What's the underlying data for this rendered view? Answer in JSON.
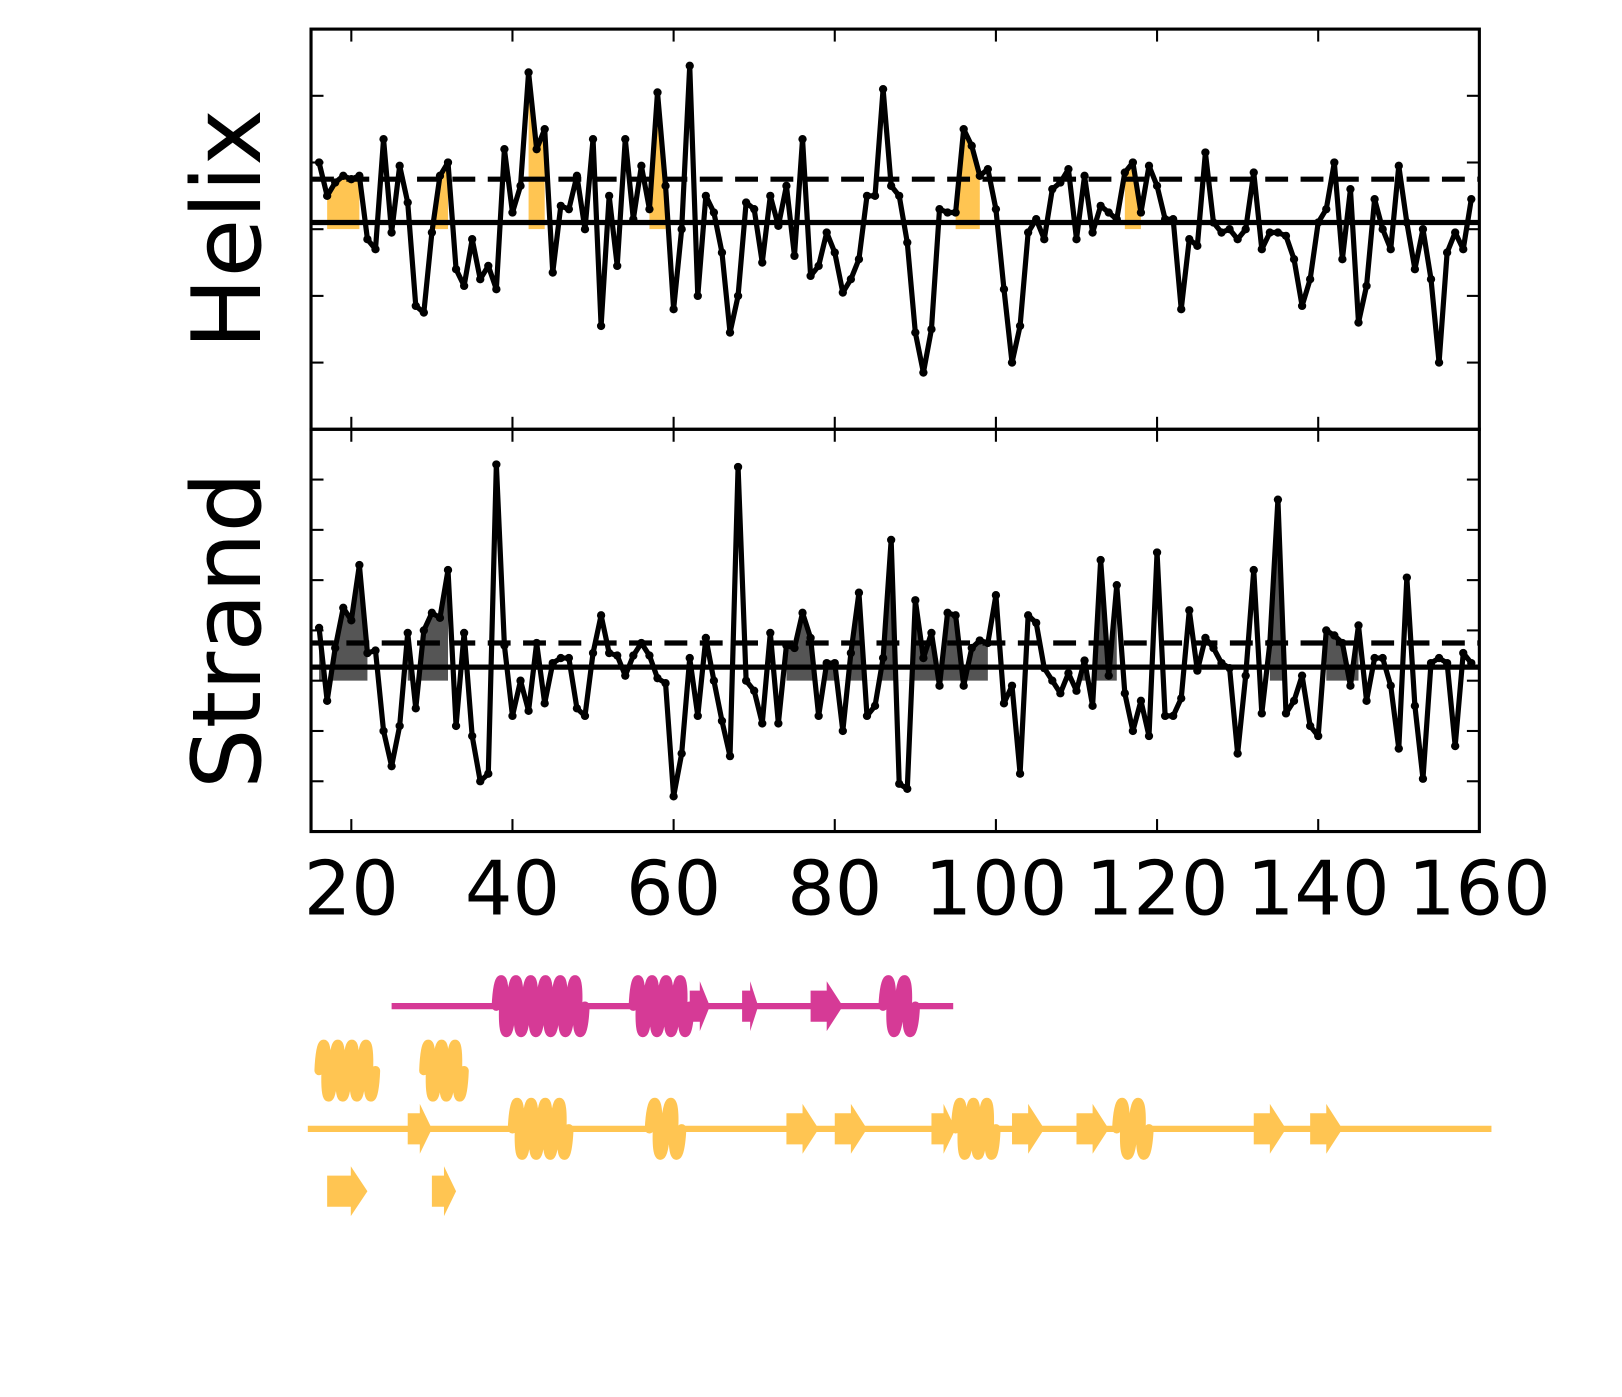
{
  "chart_data": [
    {
      "type": "line",
      "ylabel": "Helix",
      "x": [
        16,
        17,
        18,
        19,
        20,
        21,
        22,
        23,
        24,
        25,
        26,
        27,
        28,
        29,
        30,
        31,
        32,
        33,
        34,
        35,
        36,
        37,
        38,
        39,
        40,
        41,
        42,
        43,
        44,
        45,
        46,
        47,
        48,
        49,
        50,
        51,
        52,
        53,
        54,
        55,
        56,
        57,
        58,
        59,
        60,
        61,
        62,
        63,
        64,
        65,
        66,
        67,
        68,
        69,
        70,
        71,
        72,
        73,
        74,
        75,
        76,
        77,
        78,
        79,
        80,
        81,
        82,
        83,
        84,
        85,
        86,
        87,
        88,
        89,
        90,
        91,
        92,
        93,
        94,
        95,
        96,
        97,
        98,
        99,
        100,
        101,
        102,
        103,
        104,
        105,
        106,
        107,
        108,
        109,
        110,
        111,
        112,
        113,
        114,
        115,
        116,
        117,
        118,
        119,
        120,
        121,
        122,
        123,
        124,
        125,
        126,
        127,
        128,
        129,
        130,
        131,
        132,
        133,
        134,
        135,
        136,
        137,
        138,
        139,
        140,
        141,
        142,
        143,
        144,
        145,
        146,
        147,
        148,
        149,
        150,
        151,
        152,
        153,
        154,
        155,
        156,
        157,
        158,
        159
      ],
      "series": [
        {
          "color": "#000000",
          "values": [
            1.0,
            0.5,
            0.7,
            0.8,
            0.75,
            0.8,
            -0.15,
            -0.3,
            1.35,
            -0.05,
            0.95,
            0.4,
            -1.15,
            -1.25,
            -0.05,
            0.8,
            1.0,
            -0.6,
            -0.85,
            -0.15,
            -0.75,
            -0.55,
            -0.9,
            1.2,
            0.25,
            0.65,
            2.35,
            1.2,
            1.5,
            -0.65,
            0.35,
            0.3,
            0.8,
            0,
            1.35,
            -1.45,
            0.5,
            -0.55,
            1.35,
            0.15,
            0.95,
            0.3,
            2.05,
            0.65,
            -1.2,
            0,
            2.45,
            -1.0,
            0.5,
            0.25,
            -0.35,
            -1.55,
            -1.0,
            0.4,
            0.3,
            -0.5,
            0.5,
            0.05,
            0.65,
            -0.4,
            1.35,
            -0.7,
            -0.55,
            -0.05,
            -0.35,
            -0.95,
            -0.75,
            -0.45,
            0.5,
            0.5,
            2.1,
            0.65,
            0.5,
            -0.2,
            -1.55,
            -2.15,
            -1.5,
            0.3,
            0.25,
            0.25,
            1.5,
            1.25,
            0.8,
            0.9,
            0.3,
            -0.9,
            -2.0,
            -1.45,
            -0.05,
            0.15,
            -0.15,
            0.6,
            0.7,
            0.9,
            -0.15,
            0.8,
            -0.05,
            0.35,
            0.25,
            0.15,
            0.85,
            1.0,
            0.25,
            0.95,
            0.65,
            0.15,
            0.15,
            -1.2,
            -0.15,
            -0.25,
            1.15,
            0.1,
            -0.05,
            0,
            -0.15,
            0,
            0.85,
            -0.3,
            -0.05,
            -0.05,
            -0.1,
            -0.45,
            -1.15,
            -0.75,
            0.1,
            0.3,
            1.0,
            -0.45,
            0.6,
            -1.4,
            -0.85,
            0.45,
            0,
            -0.3,
            0.95,
            0.1,
            -0.6,
            0,
            -0.75,
            -2.0,
            -0.35,
            -0.05,
            -0.3,
            0.45
          ]
        }
      ],
      "xlim": [
        15,
        160
      ],
      "xticks": [
        20,
        40,
        60,
        80,
        100,
        120,
        140,
        160
      ],
      "ylim": [
        -3,
        3
      ],
      "yticks": [
        -2,
        -1,
        0,
        1,
        2
      ],
      "thresholds": [
        {
          "value": 0.1,
          "style": "solid"
        },
        {
          "value": 0.75,
          "style": "dashed"
        }
      ],
      "fill_color": "#ffc552",
      "fill_regions": [
        [
          17,
          21
        ],
        [
          30,
          32
        ],
        [
          42,
          44
        ],
        [
          57,
          59
        ],
        [
          95,
          98
        ],
        [
          116,
          118
        ]
      ]
    },
    {
      "type": "line",
      "ylabel": "Strand",
      "x": [
        16,
        17,
        18,
        19,
        20,
        21,
        22,
        23,
        24,
        25,
        26,
        27,
        28,
        29,
        30,
        31,
        32,
        33,
        34,
        35,
        36,
        37,
        38,
        39,
        40,
        41,
        42,
        43,
        44,
        45,
        46,
        47,
        48,
        49,
        50,
        51,
        52,
        53,
        54,
        55,
        56,
        57,
        58,
        59,
        60,
        61,
        62,
        63,
        64,
        65,
        66,
        67,
        68,
        69,
        70,
        71,
        72,
        73,
        74,
        75,
        76,
        77,
        78,
        79,
        80,
        81,
        82,
        83,
        84,
        85,
        86,
        87,
        88,
        89,
        90,
        91,
        92,
        93,
        94,
        95,
        96,
        97,
        98,
        99,
        100,
        101,
        102,
        103,
        104,
        105,
        106,
        107,
        108,
        109,
        110,
        111,
        112,
        113,
        114,
        115,
        116,
        117,
        118,
        119,
        120,
        121,
        122,
        123,
        124,
        125,
        126,
        127,
        128,
        129,
        130,
        131,
        132,
        133,
        134,
        135,
        136,
        137,
        138,
        139,
        140,
        141,
        142,
        143,
        144,
        145,
        146,
        147,
        148,
        149,
        150,
        151,
        152,
        153,
        154,
        155,
        156,
        157,
        158,
        159
      ],
      "series": [
        {
          "color": "#000000",
          "values": [
            1.05,
            -0.4,
            0.65,
            1.45,
            1.2,
            2.3,
            0.55,
            0.6,
            -1.0,
            -1.7,
            -0.9,
            0.95,
            -0.55,
            1.0,
            1.35,
            1.25,
            2.2,
            -0.9,
            0.95,
            -1.1,
            -2.0,
            -1.85,
            4.3,
            0.7,
            -0.7,
            0,
            -0.6,
            0.75,
            -0.45,
            0.35,
            0.45,
            0.45,
            -0.55,
            -0.7,
            0.55,
            1.3,
            0.55,
            0.5,
            0.1,
            0.5,
            0.75,
            0.5,
            0.05,
            -0.05,
            -2.3,
            -1.45,
            0.45,
            -0.7,
            0.85,
            0,
            -0.8,
            -1.5,
            4.25,
            0,
            -0.2,
            -0.85,
            0.95,
            -0.85,
            0.7,
            0.65,
            1.35,
            0.85,
            -0.7,
            0.35,
            0.35,
            -1.0,
            0.55,
            1.75,
            -0.7,
            -0.5,
            0.45,
            2.8,
            -2.05,
            -2.15,
            1.6,
            0.45,
            0.95,
            -0.1,
            1.35,
            1.3,
            -0.1,
            0.65,
            0.8,
            0.75,
            1.7,
            -0.45,
            -0.1,
            -1.85,
            1.3,
            1.15,
            0.25,
            0,
            -0.25,
            0.15,
            -0.2,
            0.4,
            -0.5,
            2.4,
            0.1,
            1.9,
            -0.25,
            -1.0,
            -0.4,
            -1.1,
            2.55,
            -0.7,
            -0.7,
            -0.35,
            1.4,
            0.2,
            0.85,
            0.65,
            0.35,
            0.25,
            -1.45,
            0.1,
            2.2,
            -0.65,
            0.75,
            3.6,
            -0.65,
            -0.4,
            0.1,
            -0.9,
            -1.1,
            1.0,
            0.9,
            0.75,
            -0.1,
            1.1,
            -0.4,
            0.45,
            0.45,
            -0.1,
            -1.35,
            2.05,
            -0.5,
            -1.95,
            0.35,
            0.45,
            0.35,
            -1.3,
            0.55,
            0.35
          ]
        }
      ],
      "xlim": [
        15,
        160
      ],
      "xticks": [
        20,
        40,
        60,
        80,
        100,
        120,
        140,
        160
      ],
      "ylim": [
        -3,
        5
      ],
      "yticks": [
        -2,
        -1,
        0,
        1,
        2,
        3,
        4
      ],
      "thresholds": [
        {
          "value": 0.27,
          "style": "solid"
        },
        {
          "value": 0.75,
          "style": "dashed"
        }
      ],
      "fill_color": "#555555",
      "fill_regions": [
        [
          16,
          22
        ],
        [
          27,
          32
        ],
        [
          74,
          99
        ],
        [
          109,
          115
        ],
        [
          134,
          136
        ],
        [
          141,
          145
        ]
      ]
    }
  ],
  "structure_tracks": [
    {
      "color": "#d63a96",
      "line": [
        25,
        94.7
      ],
      "elements": [
        {
          "type": "helix",
          "start": 38,
          "end": 49
        },
        {
          "type": "helix",
          "start": 55,
          "end": 62
        },
        {
          "type": "strand",
          "start": 62,
          "end": 64.5
        },
        {
          "type": "strand",
          "start": 68.5,
          "end": 70.5
        },
        {
          "type": "strand",
          "start": 77,
          "end": 81
        },
        {
          "type": "helix",
          "start": 86,
          "end": 90
        }
      ]
    },
    {
      "color": "#ffc552",
      "line": null,
      "elements": [
        {
          "type": "helix",
          "start": 16,
          "end": 23
        },
        {
          "type": "helix",
          "start": 29,
          "end": 34
        }
      ]
    },
    {
      "color": "#ffc552",
      "line": [
        14.6,
        161.5
      ],
      "elements": [
        {
          "type": "strand",
          "start": 27,
          "end": 30
        },
        {
          "type": "helix",
          "start": 40,
          "end": 47
        },
        {
          "type": "helix",
          "start": 57,
          "end": 61
        },
        {
          "type": "strand",
          "start": 74,
          "end": 78
        },
        {
          "type": "strand",
          "start": 80,
          "end": 84
        },
        {
          "type": "strand",
          "start": 92,
          "end": 95
        },
        {
          "type": "helix",
          "start": 95,
          "end": 100
        },
        {
          "type": "strand",
          "start": 102,
          "end": 106
        },
        {
          "type": "strand",
          "start": 110,
          "end": 114
        },
        {
          "type": "helix",
          "start": 115,
          "end": 119
        },
        {
          "type": "strand",
          "start": 132,
          "end": 136
        },
        {
          "type": "strand",
          "start": 139,
          "end": 143
        }
      ]
    },
    {
      "color": "#ffc552",
      "line": null,
      "elements": [
        {
          "type": "strand",
          "start": 17,
          "end": 22
        },
        {
          "type": "strand",
          "start": 30,
          "end": 33
        }
      ]
    }
  ]
}
